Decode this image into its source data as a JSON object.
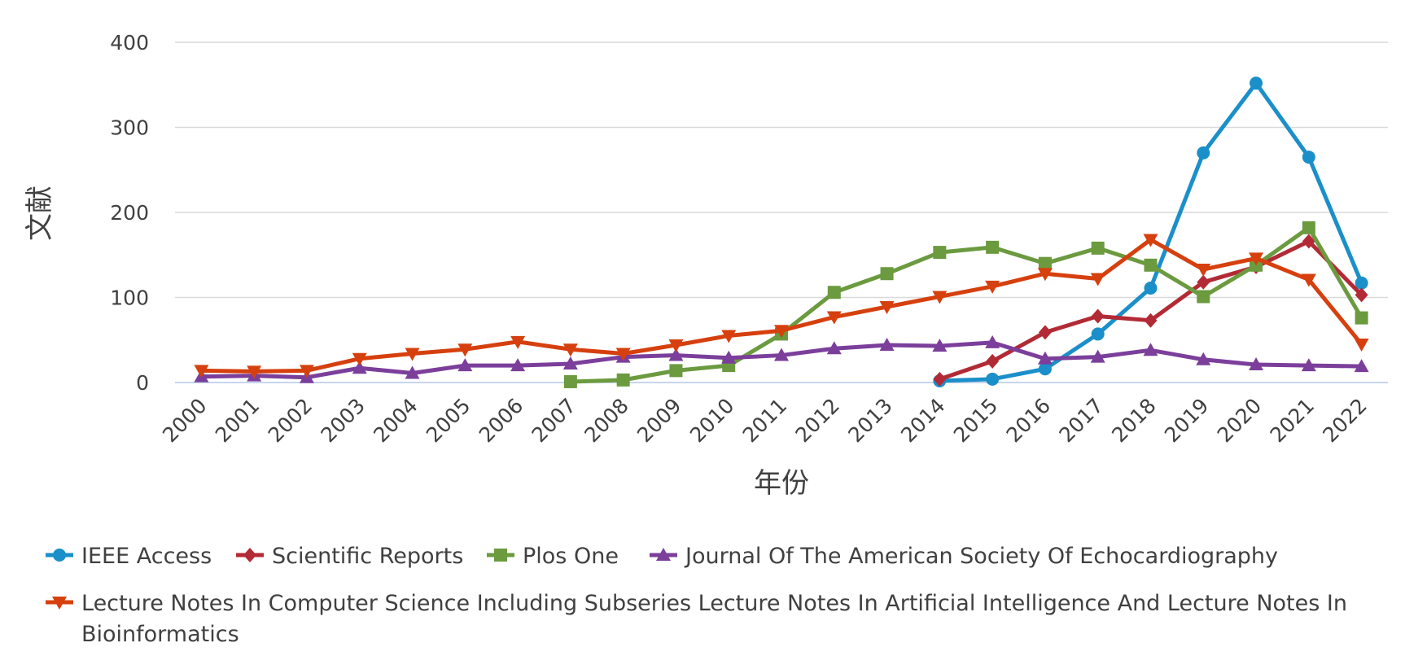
{
  "chart_data": {
    "type": "line",
    "title": "",
    "xlabel": "年份",
    "ylabel": "文献",
    "ylim": [
      0,
      400
    ],
    "yticks": [
      "0",
      "100",
      "200",
      "300",
      "400"
    ],
    "grid": true,
    "legend_position": "bottom",
    "categories": [
      "2000",
      "2001",
      "2002",
      "2003",
      "2004",
      "2005",
      "2006",
      "2007",
      "2008",
      "2009",
      "2010",
      "2011",
      "2012",
      "2013",
      "2014",
      "2015",
      "2016",
      "2017",
      "2018",
      "2019",
      "2020",
      "2021",
      "2022"
    ],
    "series": [
      {
        "name": "IEEE Access",
        "color": "#1b8fc9",
        "marker": "circle",
        "values": [
          null,
          null,
          null,
          null,
          null,
          null,
          null,
          null,
          null,
          null,
          null,
          null,
          null,
          null,
          2,
          4,
          16,
          57,
          111,
          270,
          352,
          265,
          117
        ]
      },
      {
        "name": "Scientific Reports",
        "color": "#b22a35",
        "marker": "diamond",
        "values": [
          null,
          null,
          null,
          null,
          null,
          null,
          null,
          null,
          null,
          null,
          null,
          null,
          null,
          null,
          4,
          25,
          59,
          78,
          73,
          118,
          136,
          166,
          103
        ]
      },
      {
        "name": "Plos One",
        "color": "#6b9a3f",
        "marker": "square",
        "values": [
          null,
          null,
          null,
          null,
          null,
          null,
          null,
          1,
          3,
          14,
          20,
          57,
          106,
          128,
          153,
          159,
          140,
          158,
          138,
          101,
          138,
          182,
          76
        ]
      },
      {
        "name": "Journal Of The American Society Of Echocardiography",
        "color": "#7b3f9b",
        "marker": "triangle-up",
        "values": [
          7,
          8,
          6,
          17,
          11,
          20,
          20,
          22,
          30,
          32,
          29,
          32,
          40,
          44,
          43,
          47,
          28,
          30,
          38,
          27,
          21,
          20,
          19
        ]
      },
      {
        "name": "Lecture Notes In Computer Science Including Subseries Lecture Notes In Artificial Intelligence And Lecture Notes In Bioinformatics",
        "color": "#d6400e",
        "marker": "triangle-down",
        "values": [
          14,
          13,
          14,
          28,
          34,
          39,
          48,
          39,
          34,
          44,
          55,
          61,
          77,
          89,
          101,
          113,
          128,
          122,
          168,
          133,
          146,
          121,
          45
        ]
      }
    ]
  }
}
